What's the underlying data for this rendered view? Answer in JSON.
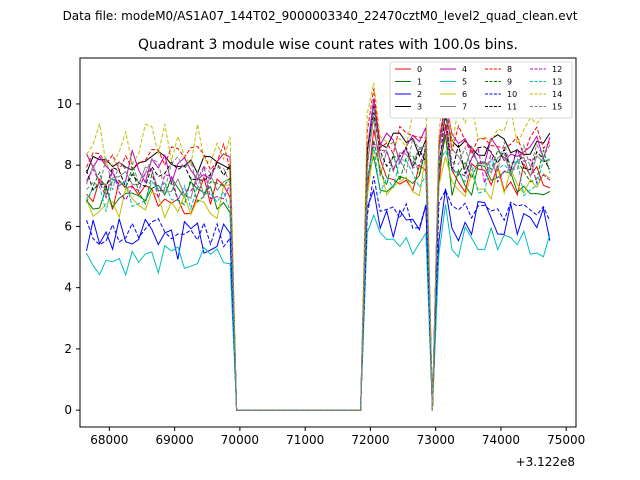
{
  "header": {
    "file_label": "Data file: modeM0/AS1A07_144T02_9000003340_22470cztM0_level2_quad_clean.evt"
  },
  "chart_data": {
    "type": "line",
    "title": "Quadrant 3 module wise count rates with 100.0s bins.",
    "xlabel": "",
    "ylabel": "",
    "x_offset_label": "+3.122e8",
    "xlim": [
      67550,
      75150
    ],
    "ylim": [
      -0.55,
      11.5
    ],
    "xticks": [
      68000,
      69000,
      70000,
      71000,
      72000,
      73000,
      74000,
      75000
    ],
    "yticks": [
      0,
      2,
      4,
      6,
      8,
      10
    ],
    "legend_position": "top-right",
    "gti": [
      [
        67650,
        69850
      ],
      [
        71950,
        72850
      ],
      [
        73050,
        74750
      ]
    ],
    "bin_width": 100,
    "series": [
      {
        "name": "0",
        "color": "#ff0000",
        "dash": "solid",
        "base": 7.0,
        "amp": 0.3,
        "seed": 1
      },
      {
        "name": "1",
        "color": "#008000",
        "dash": "solid",
        "base": 7.0,
        "amp": 0.3,
        "seed": 2
      },
      {
        "name": "2",
        "color": "#0000ff",
        "dash": "solid",
        "base": 5.6,
        "amp": 0.35,
        "seed": 3
      },
      {
        "name": "3",
        "color": "#000000",
        "dash": "solid",
        "base": 8.1,
        "amp": 0.2,
        "seed": 4
      },
      {
        "name": "4",
        "color": "#bf00bf",
        "dash": "solid",
        "base": 7.9,
        "amp": 0.3,
        "seed": 5
      },
      {
        "name": "5",
        "color": "#00bfbf",
        "dash": "solid",
        "base": 4.9,
        "amp": 0.25,
        "seed": 6
      },
      {
        "name": "6",
        "color": "#bfbf00",
        "dash": "solid",
        "base": 6.8,
        "amp": 0.3,
        "seed": 7
      },
      {
        "name": "7",
        "color": "#808080",
        "dash": "solid",
        "base": 7.5,
        "amp": 0.3,
        "seed": 8
      },
      {
        "name": "8",
        "color": "#ff0000",
        "dash": "dashed",
        "base": 8.2,
        "amp": 0.25,
        "seed": 9
      },
      {
        "name": "9",
        "color": "#008000",
        "dash": "dashed",
        "base": 7.3,
        "amp": 0.3,
        "seed": 10
      },
      {
        "name": "10",
        "color": "#0000ff",
        "dash": "dashed",
        "base": 5.8,
        "amp": 0.25,
        "seed": 11
      },
      {
        "name": "11",
        "color": "#000000",
        "dash": "dashed",
        "base": 7.6,
        "amp": 0.25,
        "seed": 12
      },
      {
        "name": "12",
        "color": "#bf00bf",
        "dash": "dashed",
        "base": 7.4,
        "amp": 0.3,
        "seed": 13
      },
      {
        "name": "13",
        "color": "#00bfbf",
        "dash": "dashed",
        "base": 7.0,
        "amp": 0.3,
        "seed": 14
      },
      {
        "name": "14",
        "color": "#bfbf00",
        "dash": "dashed",
        "base": 8.7,
        "amp": 0.35,
        "seed": 15
      },
      {
        "name": "15",
        "color": "#808080",
        "dash": "dashed",
        "base": 7.7,
        "amp": 0.3,
        "seed": 16
      }
    ]
  }
}
